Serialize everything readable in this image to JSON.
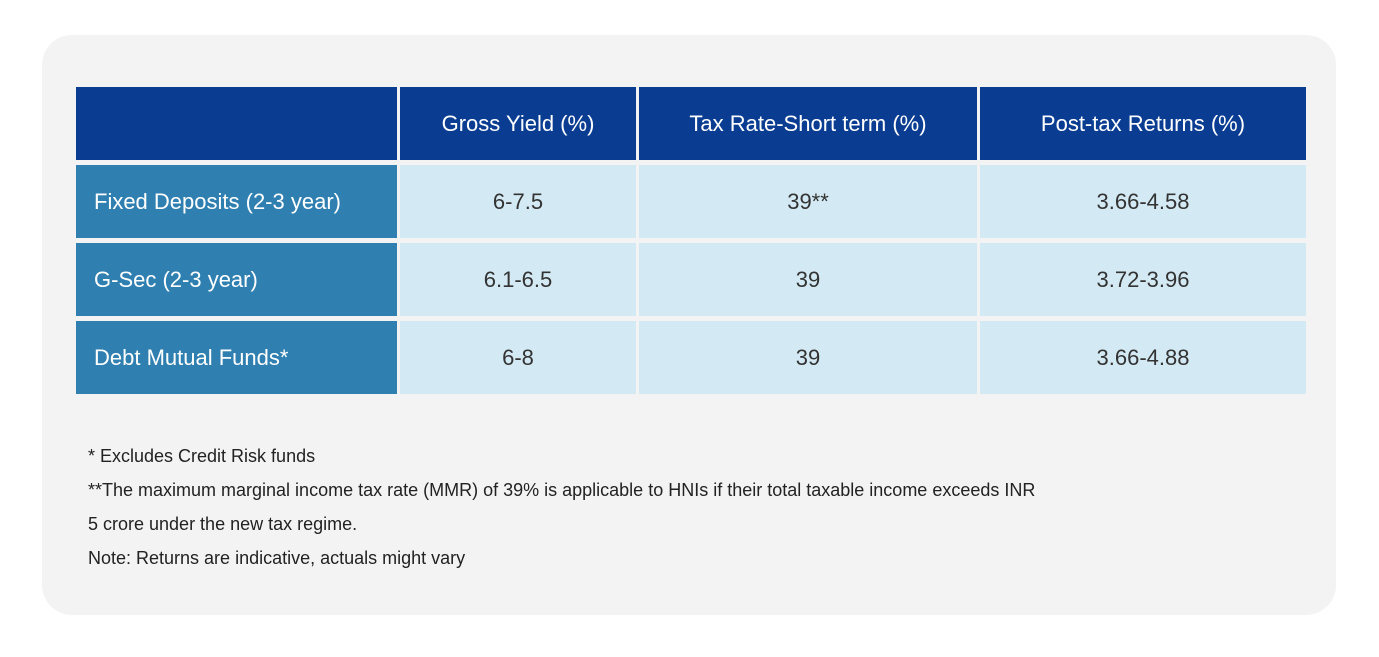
{
  "table": {
    "headers": [
      "",
      "Gross Yield (%)",
      "Tax Rate-Short term (%)",
      "Post-tax Returns (%)"
    ],
    "rows": [
      {
        "label": "Fixed Deposits (2-3 year)",
        "gross_yield": "6-7.5",
        "tax_rate": "39**",
        "post_tax": "3.66-4.58"
      },
      {
        "label": "G-Sec (2-3 year)",
        "gross_yield": "6.1-6.5",
        "tax_rate": "39",
        "post_tax": "3.72-3.96"
      },
      {
        "label": "Debt Mutual Funds*",
        "gross_yield": "6-8",
        "tax_rate": "39",
        "post_tax": "3.66-4.88"
      }
    ]
  },
  "notes": {
    "line1": "* Excludes Credit Risk funds",
    "line2": "**The maximum marginal income tax rate (MMR) of 39% is applicable to HNIs if their total taxable income exceeds INR",
    "line3": "5 crore under the new tax regime.",
    "line4": "Note: Returns are indicative, actuals might vary"
  },
  "colors": {
    "header_bg": "#0a3d91",
    "row_label_bg": "#2f7fb0",
    "cell_bg": "#d3e9f3",
    "card_bg": "#f3f3f3"
  }
}
